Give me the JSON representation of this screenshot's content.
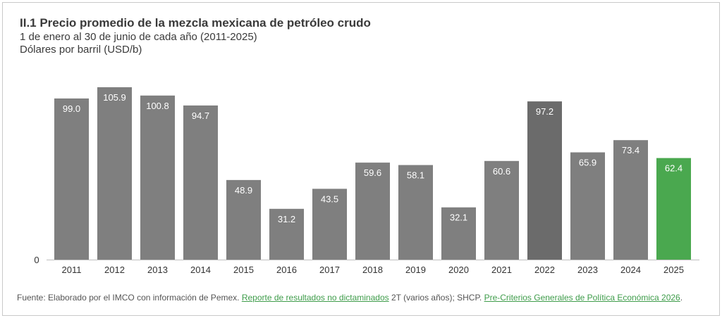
{
  "header": {
    "title": "II.1 Precio promedio de la mezcla mexicana de petróleo crudo",
    "subtitle": "1 de enero al 30 de junio de cada año (2011-2025)",
    "unit": "Dólares por barril (USD/b)"
  },
  "source": {
    "prefix": "Fuente: Elaborado por el IMCO con información de Pemex. ",
    "link1": "Reporte de resultados no dictaminados",
    "middle": " 2T (varios años); SHCP. ",
    "link2": "Pre-Criterios Generales de Política Económica 2026",
    "suffix": "."
  },
  "colors": {
    "bar": "#7f7f7f",
    "highlight_2022": "#6b6b6b",
    "highlight_2025": "#4aa84f",
    "label_text": "#ffffff",
    "axis_text": "#333333"
  },
  "chart_data": {
    "type": "bar",
    "categories": [
      "2011",
      "2012",
      "2013",
      "2014",
      "2015",
      "2016",
      "2017",
      "2018",
      "2019",
      "2020",
      "2021",
      "2022",
      "2023",
      "2024",
      "2025"
    ],
    "values": [
      99.0,
      105.9,
      100.8,
      94.7,
      48.9,
      31.2,
      43.5,
      59.6,
      58.1,
      32.1,
      60.6,
      97.2,
      65.9,
      73.4,
      62.4
    ],
    "value_labels": [
      "99.0",
      "105.9",
      "100.8",
      "94.7",
      "48.9",
      "31.2",
      "43.5",
      "59.6",
      "58.1",
      "32.1",
      "60.6",
      "97.2",
      "65.9",
      "73.4",
      "62.4"
    ],
    "y_tick_labels": [
      "0"
    ],
    "ylim": [
      0,
      105.9
    ],
    "grid": false,
    "legend": false
  }
}
